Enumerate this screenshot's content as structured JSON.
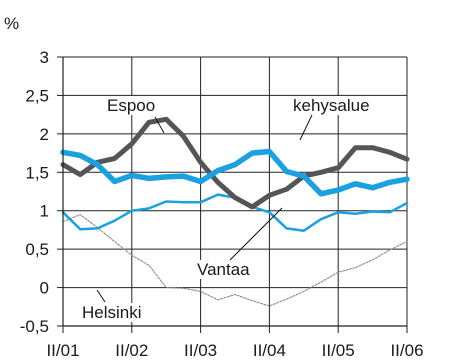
{
  "chart_data": {
    "type": "line",
    "unit_label": "%",
    "ylim": [
      -0.5,
      3
    ],
    "yticks": [
      -0.5,
      0,
      0.5,
      1,
      1.5,
      2,
      2.5,
      3
    ],
    "ytick_labels": [
      "-0,5",
      "0",
      "0,5",
      "1",
      "1,5",
      "2",
      "2,5",
      "3"
    ],
    "xlim": [
      0,
      20
    ],
    "xtick_positions": [
      0,
      4,
      8,
      12,
      16,
      20
    ],
    "xtick_labels": [
      "II/01",
      "II/02",
      "II/03",
      "II/04",
      "II/05",
      "II/06"
    ],
    "grid": true,
    "x": [
      0,
      1,
      2,
      3,
      4,
      5,
      6,
      7,
      8,
      9,
      10,
      11,
      12,
      13,
      14,
      15,
      16,
      17,
      18,
      19,
      20
    ],
    "series": [
      {
        "name": "Espoo",
        "color": "#555555",
        "style": "thick-dark",
        "values": [
          1.6,
          1.47,
          1.63,
          1.68,
          1.87,
          2.15,
          2.19,
          1.97,
          1.63,
          1.37,
          1.17,
          1.05,
          1.2,
          1.28,
          1.45,
          1.5,
          1.56,
          1.82,
          1.82,
          1.76,
          1.67
        ]
      },
      {
        "name": "kehysalue",
        "color": "#1ba1e2",
        "style": "thick-light",
        "values": [
          1.76,
          1.72,
          1.6,
          1.38,
          1.46,
          1.42,
          1.44,
          1.45,
          1.38,
          1.52,
          1.6,
          1.75,
          1.77,
          1.51,
          1.45,
          1.22,
          1.27,
          1.35,
          1.3,
          1.37,
          1.41
        ]
      },
      {
        "name": "Vantaa",
        "color": "#1ba1e2",
        "style": "thin-light",
        "values": [
          0.98,
          0.76,
          0.77,
          0.87,
          1.0,
          1.03,
          1.12,
          1.11,
          1.11,
          1.21,
          1.17,
          1.05,
          0.98,
          0.77,
          0.74,
          0.89,
          0.98,
          0.96,
          0.99,
          0.98,
          1.1
        ]
      },
      {
        "name": "Helsinki",
        "color": "#8a8a8a",
        "style": "dotted",
        "values": [
          0.86,
          0.95,
          0.78,
          0.6,
          0.42,
          0.29,
          0.0,
          -0.01,
          -0.05,
          -0.16,
          -0.09,
          -0.17,
          -0.24,
          -0.15,
          -0.05,
          0.07,
          0.2,
          0.26,
          0.36,
          0.49,
          0.6
        ]
      }
    ],
    "annotations": [
      {
        "text": "Espoo",
        "series": "Espoo"
      },
      {
        "text": "kehysalue",
        "series": "kehysalue"
      },
      {
        "text": "Vantaa",
        "series": "Vantaa"
      },
      {
        "text": "Helsinki",
        "series": "Helsinki"
      }
    ]
  }
}
